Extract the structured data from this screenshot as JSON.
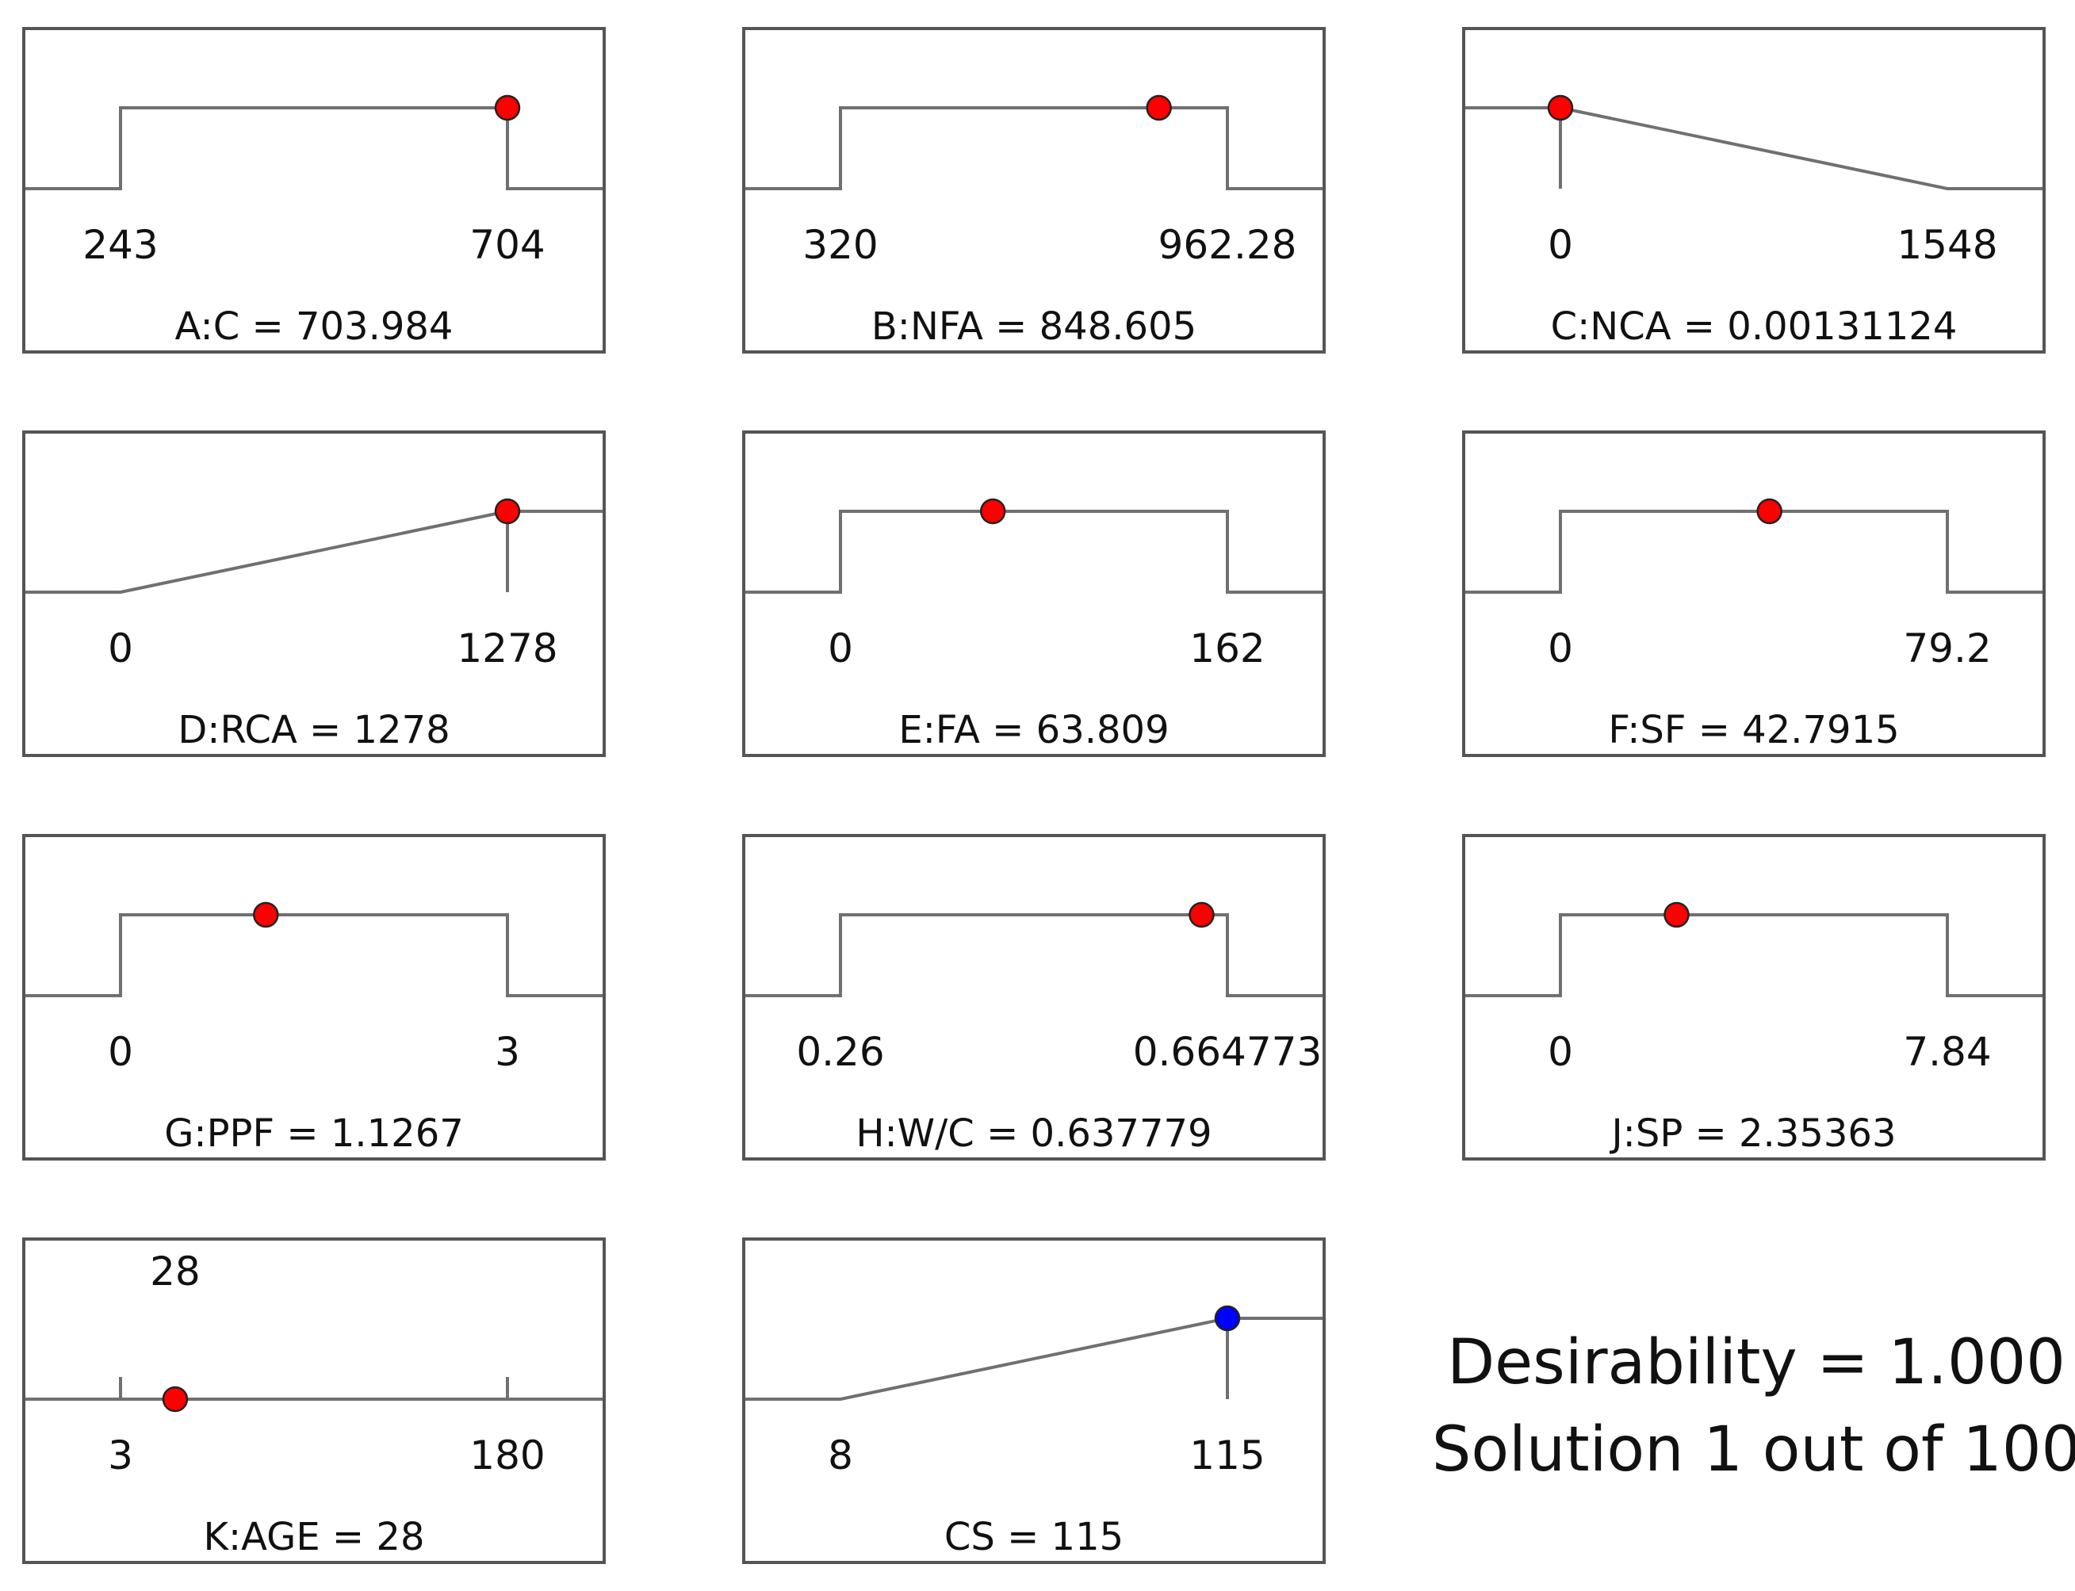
{
  "chart_data": {
    "type": "desirability-ramps",
    "title": "",
    "colors": {
      "frame": "#555555",
      "curve": "#707070",
      "factor_point": "#ff0000",
      "response_point": "#0000ff"
    },
    "panels": [
      {
        "label": "A:C = 703.984",
        "factor": "A:C",
        "value": 703.984,
        "low": 243,
        "high": 704,
        "low_label": "243",
        "high_label": "704",
        "goal": "in-range",
        "kind": "factor"
      },
      {
        "label": "B:NFA = 848.605",
        "factor": "B:NFA",
        "value": 848.605,
        "low": 320,
        "high": 962.28,
        "low_label": "320",
        "high_label": "962.28",
        "goal": "in-range",
        "kind": "factor"
      },
      {
        "label": "C:NCA = 0.00131124",
        "factor": "C:NCA",
        "value": 0.00131124,
        "low": 0,
        "high": 1548,
        "low_label": "0",
        "high_label": "1548",
        "goal": "minimize",
        "kind": "factor"
      },
      {
        "label": "D:RCA = 1278",
        "factor": "D:RCA",
        "value": 1278,
        "low": 0,
        "high": 1278,
        "low_label": "0",
        "high_label": "1278",
        "goal": "maximize",
        "kind": "factor"
      },
      {
        "label": "E:FA = 63.809",
        "factor": "E:FA",
        "value": 63.809,
        "low": 0,
        "high": 162,
        "low_label": "0",
        "high_label": "162",
        "goal": "in-range",
        "kind": "factor"
      },
      {
        "label": "F:SF = 42.7915",
        "factor": "F:SF",
        "value": 42.7915,
        "low": 0,
        "high": 79.2,
        "low_label": "0",
        "high_label": "79.2",
        "goal": "in-range",
        "kind": "factor"
      },
      {
        "label": "G:PPF = 1.1267",
        "factor": "G:PPF",
        "value": 1.1267,
        "low": 0,
        "high": 3,
        "low_label": "0",
        "high_label": "3",
        "goal": "in-range",
        "kind": "factor"
      },
      {
        "label": "H:W/C = 0.637779",
        "factor": "H:W/C",
        "value": 0.637779,
        "low": 0.26,
        "high": 0.664773,
        "low_label": "0.26",
        "high_label": "0.664773",
        "goal": "in-range",
        "kind": "factor"
      },
      {
        "label": "J:SP = 2.35363",
        "factor": "J:SP",
        "value": 2.35363,
        "low": 0,
        "high": 7.84,
        "low_label": "0",
        "high_label": "7.84",
        "goal": "in-range",
        "kind": "factor"
      },
      {
        "label": "K:AGE = 28",
        "factor": "K:AGE",
        "value": 28,
        "low": 3,
        "high": 180,
        "low_label": "3",
        "high_label": "180",
        "goal": "target",
        "target_label": "28",
        "kind": "factor"
      },
      {
        "label": "CS = 115",
        "factor": "CS",
        "value": 115,
        "low": 8,
        "high": 115,
        "low_label": "8",
        "high_label": "115",
        "goal": "maximize",
        "kind": "response"
      }
    ],
    "summary": {
      "desirability": "Desirability = 1.000",
      "solution": "Solution 1 out of 100"
    }
  }
}
